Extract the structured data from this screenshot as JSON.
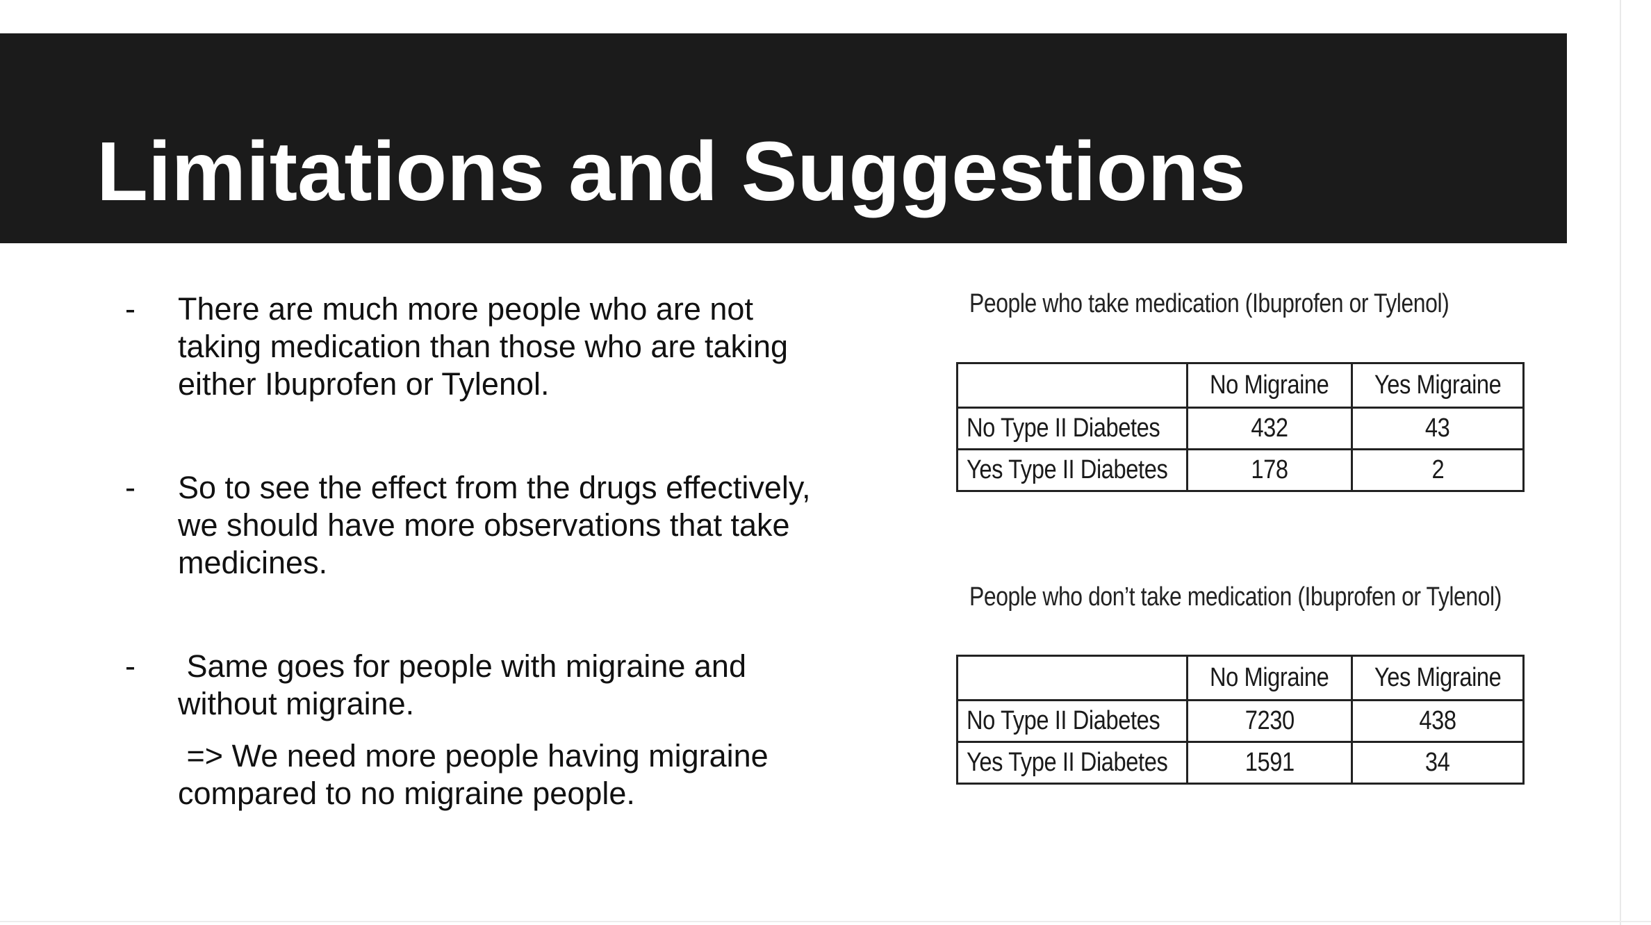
{
  "title": "Limitations and Suggestions",
  "bullets": [
    {
      "marker": "-",
      "lines": [
        "There are much more people who are not",
        "taking medication than those who are taking",
        "either Ibuprofen or Tylenol."
      ]
    },
    {
      "marker": "-",
      "lines": [
        "So to see the effect from the drugs effectively,",
        "we should have more observations that take",
        "medicines."
      ]
    },
    {
      "marker": "-",
      "lines": [
        " Same goes for people with migraine and",
        "without migraine."
      ],
      "followup": [
        " => We need more people having migraine",
        "compared to no migraine people."
      ]
    }
  ],
  "tables": [
    {
      "caption": "People who take medication (Ibuprofen or Tylenol)",
      "columns": [
        "",
        "No Migraine",
        "Yes Migraine"
      ],
      "rows": [
        {
          "label": "No Type II Diabetes",
          "values": [
            "432",
            "43"
          ]
        },
        {
          "label": "Yes Type II Diabetes",
          "values": [
            "178",
            "2"
          ]
        }
      ]
    },
    {
      "caption": "People who don’t take medication (Ibuprofen or Tylenol)",
      "columns": [
        "",
        "No Migraine",
        "Yes Migraine"
      ],
      "rows": [
        {
          "label": "No Type II Diabetes",
          "values": [
            "7230",
            "438"
          ]
        },
        {
          "label": "Yes Type II Diabetes",
          "values": [
            "1591",
            "34"
          ]
        }
      ]
    }
  ]
}
